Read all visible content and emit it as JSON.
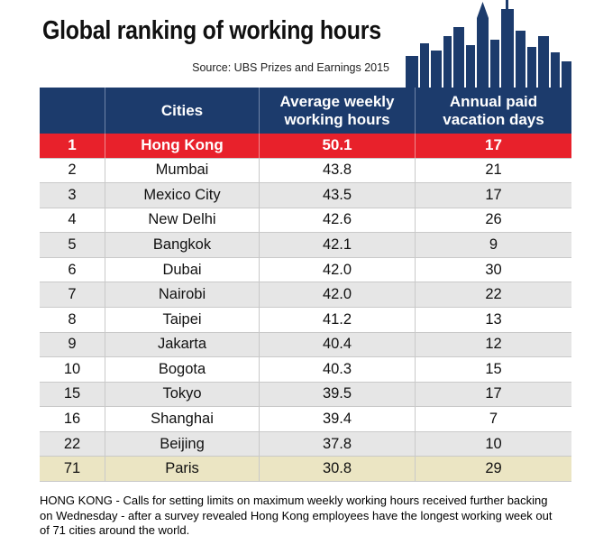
{
  "header": {
    "title": "Global ranking of working hours",
    "source": "Source: UBS Prizes and Earnings 2015"
  },
  "table": {
    "columns": [
      "",
      "Cities",
      "Average weekly working hours",
      "Annual paid vacation days"
    ],
    "rows": [
      [
        "1",
        "Hong Kong",
        "50.1",
        "17"
      ],
      [
        "2",
        "Mumbai",
        "43.8",
        "21"
      ],
      [
        "3",
        "Mexico City",
        "43.5",
        "17"
      ],
      [
        "4",
        "New Delhi",
        "42.6",
        "26"
      ],
      [
        "5",
        "Bangkok",
        "42.1",
        "9"
      ],
      [
        "6",
        "Dubai",
        "42.0",
        "30"
      ],
      [
        "7",
        "Nairobi",
        "42.0",
        "22"
      ],
      [
        "8",
        "Taipei",
        "41.2",
        "13"
      ],
      [
        "9",
        "Jakarta",
        "40.4",
        "12"
      ],
      [
        "10",
        "Bogota",
        "40.3",
        "15"
      ],
      [
        "15",
        "Tokyo",
        "39.5",
        "17"
      ],
      [
        "16",
        "Shanghai",
        "39.4",
        "7"
      ],
      [
        "22",
        "Beijing",
        "37.8",
        "10"
      ],
      [
        "71",
        "Paris",
        "30.8",
        "29"
      ]
    ]
  },
  "caption": "HONG KONG - Calls for setting limits on maximum weekly working hours received further backing on Wednesday - after a survey revealed Hong Kong employees have the longest working week out of 71 cities around the world."
}
